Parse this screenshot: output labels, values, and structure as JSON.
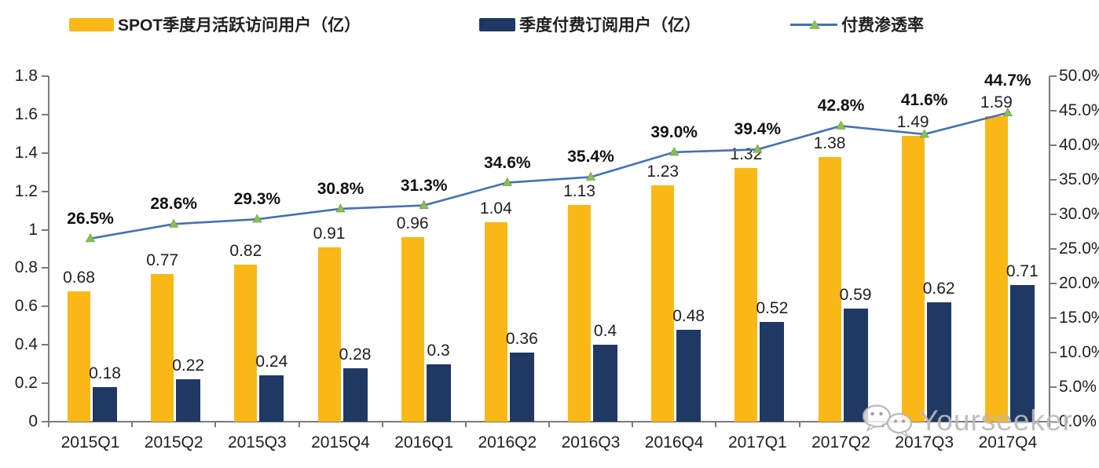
{
  "legend": {
    "items": [
      {
        "label": "SPOT季度月活跃访问用户（亿）",
        "swatch_color": "#FAB816",
        "type": "bar"
      },
      {
        "label": "季度付费订阅用户（亿）",
        "swatch_color": "#1F3864",
        "type": "bar"
      },
      {
        "label": "付费渗透率",
        "line_color": "#4470B8",
        "marker_color": "#8CBE5A",
        "type": "line-with-triangle-marker"
      }
    ]
  },
  "chart_data": {
    "type": "combo-bar-line",
    "title": "",
    "categories": [
      "2015Q1",
      "2015Q2",
      "2015Q3",
      "2015Q4",
      "2016Q1",
      "2016Q2",
      "2016Q3",
      "2016Q4",
      "2017Q1",
      "2017Q2",
      "2017Q3",
      "2017Q4"
    ],
    "series": [
      {
        "name": "SPOT季度月活跃访问用户（亿）",
        "type": "bar",
        "axis": "left",
        "color": "#FAB816",
        "values": [
          0.68,
          0.77,
          0.82,
          0.91,
          0.96,
          1.04,
          1.13,
          1.23,
          1.32,
          1.38,
          1.49,
          1.59
        ],
        "data_labels": [
          "0.68",
          "0.77",
          "0.82",
          "0.91",
          "0.96",
          "1.04",
          "1.13",
          "1.23",
          "1.32",
          "1.38",
          "1.49",
          "1.59"
        ]
      },
      {
        "name": "季度付费订阅用户（亿）",
        "type": "bar",
        "axis": "left",
        "color": "#1F3864",
        "values": [
          0.18,
          0.22,
          0.24,
          0.28,
          0.3,
          0.36,
          0.4,
          0.48,
          0.52,
          0.59,
          0.62,
          0.71
        ],
        "data_labels": [
          "0.18",
          "0.22",
          "0.24",
          "0.28",
          "0.3",
          "0.36",
          "0.4",
          "0.48",
          "0.52",
          "0.59",
          "0.62",
          "0.71"
        ]
      },
      {
        "name": "付费渗透率",
        "type": "line",
        "axis": "right",
        "color": "#4470B8",
        "marker": "triangle",
        "marker_color": "#8CBE5A",
        "values": [
          26.5,
          28.6,
          29.3,
          30.8,
          31.3,
          34.6,
          35.4,
          39.0,
          39.4,
          42.8,
          41.6,
          44.7
        ],
        "data_labels": [
          "26.5%",
          "28.6%",
          "29.3%",
          "30.8%",
          "31.3%",
          "34.6%",
          "35.4%",
          "39.0%",
          "39.4%",
          "42.8%",
          "41.6%",
          "44.7%"
        ]
      }
    ],
    "left_axis": {
      "min": 0,
      "max": 1.8,
      "step": 0.2,
      "tick_labels": [
        "0",
        "0.2",
        "0.4",
        "0.6",
        "0.8",
        "1",
        "1.2",
        "1.4",
        "1.6",
        "1.8"
      ]
    },
    "right_axis": {
      "min": 0,
      "max": 50,
      "step": 5,
      "tick_labels": [
        "0.0%",
        "5.0%",
        "10.0%",
        "15.0%",
        "20.0%",
        "25.0%",
        "30.0%",
        "35.0%",
        "40.0%",
        "45.0%",
        "50.0%"
      ]
    },
    "grid": false,
    "legend_position": "top"
  },
  "watermark": {
    "text": "Yourseeker",
    "icon": "wechat-icon"
  }
}
